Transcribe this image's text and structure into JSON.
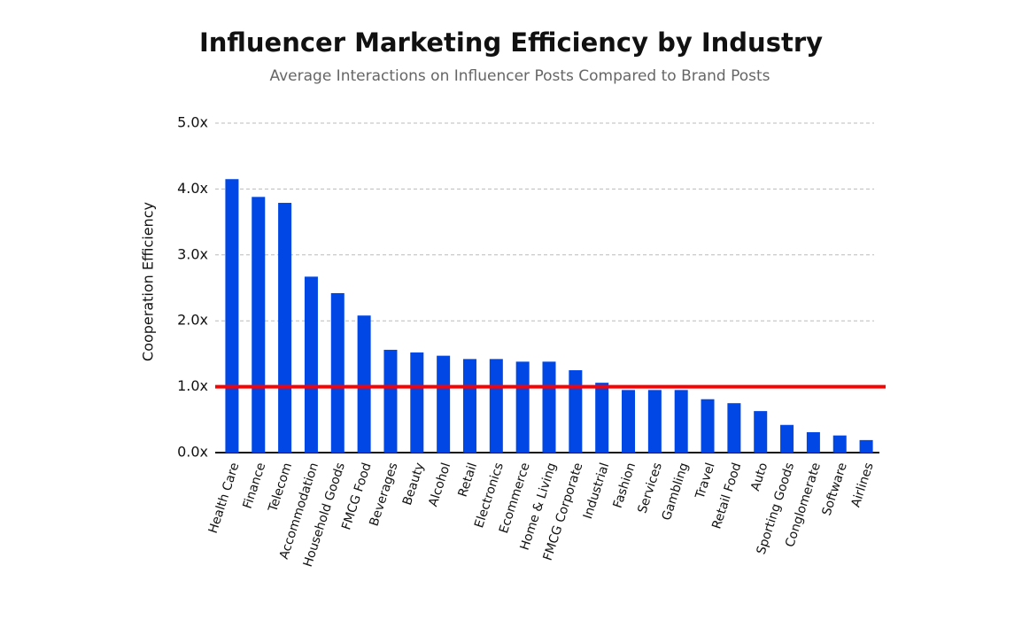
{
  "chart_data": {
    "type": "bar",
    "title": "Influencer Marketing Efficiency by Industry",
    "subtitle": "Average Interactions on Influencer Posts Compared to Brand Posts",
    "y_label": "Cooperation Efficiency",
    "categories": [
      "Health Care",
      "Finance",
      "Telecom",
      "Accommodation",
      "Household Goods",
      "FMCG Food",
      "Beverages",
      "Beauty",
      "Alcohol",
      "Retail",
      "Electronics",
      "Ecommerce",
      "Home & Living",
      "FMCG Corporate",
      "Industrial",
      "Fashion",
      "Services",
      "Gambling",
      "Travel",
      "Retail Food",
      "Auto",
      "Sporting Goods",
      "Conglomerate",
      "Software",
      "Airlines"
    ],
    "values": [
      4.15,
      3.88,
      3.79,
      2.67,
      2.42,
      2.08,
      1.56,
      1.52,
      1.47,
      1.42,
      1.42,
      1.38,
      1.38,
      1.25,
      1.06,
      0.95,
      0.95,
      0.95,
      0.81,
      0.75,
      0.63,
      0.42,
      0.31,
      0.26,
      0.19
    ],
    "color": "#0047e6",
    "ylim": [
      0,
      5
    ],
    "yticks": [
      {
        "value": 0,
        "label": "0.0x"
      },
      {
        "value": 1,
        "label": "1.0x"
      },
      {
        "value": 2,
        "label": "2.0x"
      },
      {
        "value": 3,
        "label": "3.0x"
      },
      {
        "value": 4,
        "label": "4.0x"
      },
      {
        "value": 5,
        "label": "5.0x"
      }
    ],
    "grid": true,
    "reference_line": {
      "value": 1,
      "color": "#ff0000"
    }
  }
}
